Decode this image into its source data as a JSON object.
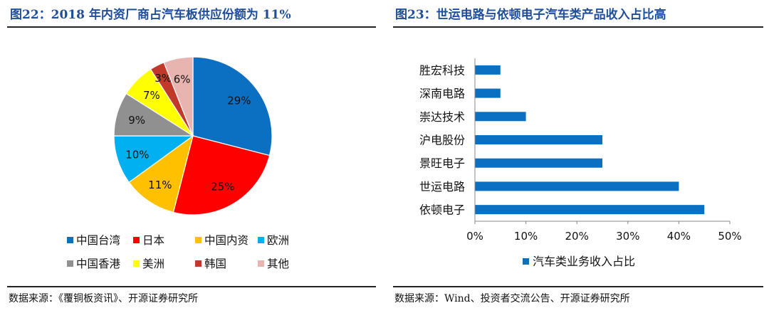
{
  "left": {
    "title": "图22：2018 年内资厂商占汽车板供应份额为 11%",
    "source": "数据来源：《覆铜板资讯》、开源证券研究所"
  },
  "right": {
    "title": "图23：世运电路与依顿电子汽车类产品收入占比高",
    "source": "数据来源：Wind、投资者交流公告、开源证券研究所"
  },
  "chart_data": [
    {
      "type": "pie",
      "labels": [
        "中国台湾",
        "日本",
        "中国内资",
        "欧洲",
        "中国香港",
        "美洲",
        "韩国",
        "其他"
      ],
      "values": [
        29,
        25,
        11,
        10,
        9,
        7,
        3,
        6
      ],
      "value_labels": [
        "29%",
        "25%",
        "11%",
        "10%",
        "9%",
        "7%",
        "3%",
        "6%"
      ],
      "colors": [
        "#0b6fc2",
        "#ff0000",
        "#ffc000",
        "#00b0f0",
        "#909090",
        "#ffff00",
        "#c0392b",
        "#e8b4b0"
      ],
      "legend": "bottom"
    },
    {
      "type": "bar",
      "orientation": "horizontal",
      "categories": [
        "胜宏科技",
        "深南电路",
        "崇达技术",
        "沪电股份",
        "景旺电子",
        "世运电路",
        "依顿电子"
      ],
      "series": [
        {
          "name": "汽车类业务收入占比",
          "values": [
            5,
            5,
            10,
            25,
            25,
            40,
            45
          ],
          "color": "#0b6fc2"
        }
      ],
      "xlim": [
        0,
        50
      ],
      "xticks": [
        "0%",
        "10%",
        "20%",
        "30%",
        "40%",
        "50%"
      ],
      "legend": "bottom"
    }
  ]
}
